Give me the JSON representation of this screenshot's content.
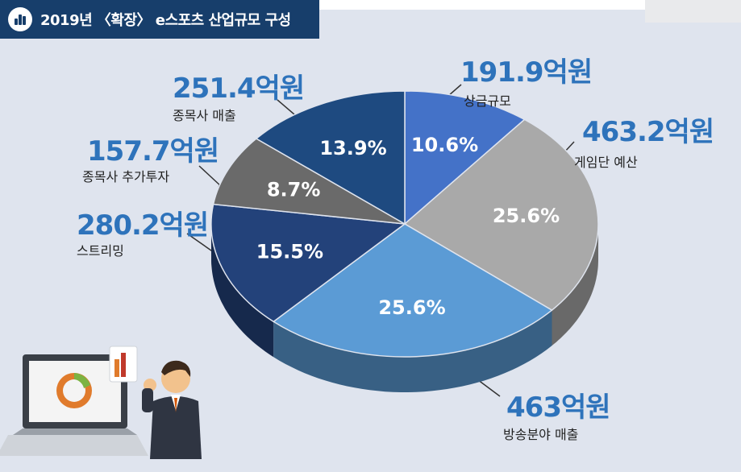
{
  "title": "2019년 〈확장〉 e스포츠 산업규모 구성",
  "chart_data": {
    "type": "pie",
    "title": "2019년 〈확장〉 e스포츠 산업규모 구성",
    "slices": [
      {
        "label": "상금규모",
        "amount": "191.9억원",
        "value": 191.9,
        "percent_label": "10.6%",
        "color": "#4472c8"
      },
      {
        "label": "게임단 예산",
        "amount": "463.2억원",
        "value": 463.2,
        "percent_label": "25.6%",
        "color": "#a9a9a9"
      },
      {
        "label": "방송분야 매출",
        "amount": "463억원",
        "value": 463,
        "percent_label": "25.6%",
        "color": "#5b9bd5"
      },
      {
        "label": "스트리밍",
        "amount": "280.2억원",
        "value": 280.2,
        "percent_label": "15.5%",
        "color": "#23427a"
      },
      {
        "label": "종목사 추가투자",
        "amount": "157.7억원",
        "value": 157.7,
        "percent_label": "8.7%",
        "color": "#6a6a6a"
      },
      {
        "label": "종목사 매출",
        "amount": "251.4억원",
        "value": 251.4,
        "percent_label": "13.9%",
        "color": "#1e4a80"
      }
    ]
  }
}
